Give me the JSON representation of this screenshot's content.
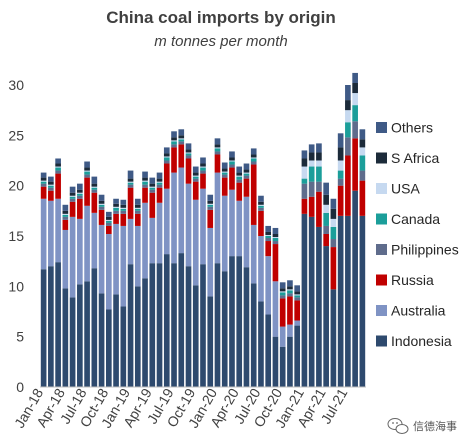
{
  "chart_data": {
    "type": "bar",
    "stacked": true,
    "title": "China coal imports by origin",
    "subtitle": "m tonnes per month",
    "xlabel": "",
    "ylabel": "",
    "ylim": [
      0,
      30
    ],
    "yticks": [
      0,
      5,
      10,
      15,
      20,
      25,
      30
    ],
    "grid": false,
    "legend_position": "right",
    "tick_labels": [
      {
        "label": "Jan-18",
        "index": 0
      },
      {
        "label": "Apr-18",
        "index": 3
      },
      {
        "label": "Jul-18",
        "index": 6
      },
      {
        "label": "Oct-18",
        "index": 9
      },
      {
        "label": "Jan-19",
        "index": 12
      },
      {
        "label": "Apr-19",
        "index": 15
      },
      {
        "label": "Jul-19",
        "index": 18
      },
      {
        "label": "Oct-19",
        "index": 21
      },
      {
        "label": "Jan-20",
        "index": 24
      },
      {
        "label": "Apr-20",
        "index": 27
      },
      {
        "label": "Jul-20",
        "index": 30
      },
      {
        "label": "Oct-20",
        "index": 33
      },
      {
        "label": "Jan-21",
        "index": 36
      },
      {
        "label": "Apr-21",
        "index": 39
      },
      {
        "label": "Jul-21",
        "index": 42
      }
    ],
    "categories": [
      "Jan-18",
      "Feb-18",
      "Mar-18",
      "Apr-18",
      "May-18",
      "Jun-18",
      "Jul-18",
      "Aug-18",
      "Sep-18",
      "Oct-18",
      "Nov-18",
      "Dec-18",
      "Jan-19",
      "Feb-19",
      "Mar-19",
      "Apr-19",
      "May-19",
      "Jun-19",
      "Jul-19",
      "Aug-19",
      "Sep-19",
      "Oct-19",
      "Nov-19",
      "Dec-19",
      "Jan-20",
      "Feb-20",
      "Mar-20",
      "Apr-20",
      "May-20",
      "Jun-20",
      "Jul-20",
      "Aug-20",
      "Sep-20",
      "Oct-20",
      "Nov-20",
      "Dec-20",
      "Jan-21",
      "Feb-21",
      "Mar-21",
      "Apr-21",
      "May-21",
      "Jun-21",
      "Jul-21",
      "Aug-21",
      "Sep-21"
    ],
    "series": [
      {
        "name": "Indonesia",
        "color": "#2e4a6e",
        "values": [
          11.7,
          12.0,
          12.4,
          9.8,
          8.9,
          10.2,
          10.5,
          11.8,
          9.3,
          7.7,
          9.2,
          8.0,
          12.2,
          10.0,
          10.8,
          12.3,
          12.3,
          13.2,
          12.3,
          13.3,
          12.0,
          10.1,
          12.2,
          9.0,
          12.3,
          11.5,
          13.0,
          13.0,
          11.9,
          10.3,
          8.5,
          7.2,
          5.0,
          4.0,
          5.0,
          6.1,
          17.2,
          16.9,
          15.9,
          14.0,
          9.7,
          17.0,
          17.0,
          19.5,
          17.0
        ]
      },
      {
        "name": "Australia",
        "color": "#7f93c4",
        "values": [
          7.0,
          6.5,
          6.3,
          5.8,
          8.0,
          6.5,
          7.5,
          5.5,
          6.8,
          7.5,
          7.0,
          8.0,
          4.5,
          6.0,
          7.5,
          4.5,
          6.0,
          6.5,
          9.0,
          8.5,
          8.2,
          8.5,
          7.5,
          6.8,
          9.0,
          7.5,
          6.6,
          5.5,
          7.0,
          5.8,
          6.5,
          5.8,
          5.5,
          2.0,
          1.2,
          0.5,
          0,
          0,
          0,
          0,
          0,
          0,
          0,
          0,
          0
        ]
      },
      {
        "name": "Russia",
        "color": "#c00000",
        "values": [
          1.2,
          1.0,
          2.5,
          1.0,
          1.5,
          2.0,
          2.8,
          2.0,
          1.5,
          0.8,
          1.0,
          1.2,
          3.1,
          1.2,
          1.5,
          2.5,
          1.5,
          2.5,
          2.5,
          2.3,
          2.5,
          1.8,
          1.5,
          1.8,
          1.8,
          1.8,
          2.2,
          1.8,
          1.8,
          6.0,
          2.5,
          1.5,
          3.7,
          2.8,
          2.8,
          2.0,
          1.5,
          2.0,
          3.5,
          1.2,
          4.2,
          3.0,
          6.0,
          5.2,
          3.5
        ]
      },
      {
        "name": "Philippines",
        "color": "#5f6c8c",
        "values": [
          0.3,
          0.3,
          0.3,
          0.3,
          0.3,
          0.3,
          0.3,
          0.3,
          0.3,
          0.3,
          0.3,
          0.3,
          0.3,
          0.3,
          0.3,
          0.3,
          0.3,
          0.3,
          0.3,
          0.3,
          0.3,
          0.3,
          0.3,
          0.3,
          0.3,
          0.3,
          0.3,
          0.3,
          0.3,
          0.3,
          0.3,
          0.3,
          0.3,
          0.3,
          0.3,
          0.3,
          1.5,
          1.5,
          1.0,
          0.8,
          0.8,
          0.7,
          1.8,
          1.7,
          1.0
        ]
      },
      {
        "name": "Canada",
        "color": "#1b9e9a",
        "values": [
          0.2,
          0.2,
          0.3,
          0.2,
          0.2,
          0.2,
          0.3,
          0.2,
          0.2,
          0.2,
          0.3,
          0.2,
          0.2,
          0.2,
          0.3,
          0.2,
          0.2,
          0.3,
          0.3,
          0.2,
          0.2,
          0.2,
          0.3,
          0.2,
          0.3,
          0.2,
          0.3,
          0.3,
          0.2,
          0.3,
          0.2,
          0.2,
          0.3,
          0.3,
          0.3,
          0.2,
          0.5,
          1.5,
          1.5,
          1.3,
          1.2,
          0.8,
          1.5,
          1.6,
          1.5
        ]
      },
      {
        "name": "USA",
        "color": "#c6d9f0",
        "values": [
          0.1,
          0.1,
          0.1,
          0.1,
          0.1,
          0.1,
          0.1,
          0.1,
          0.1,
          0.1,
          0.1,
          0.1,
          0.1,
          0.1,
          0.1,
          0.1,
          0.1,
          0.1,
          0.1,
          0.1,
          0.1,
          0.1,
          0.1,
          0.1,
          0.1,
          0.1,
          0.1,
          0.1,
          0.1,
          0.1,
          0.1,
          0.1,
          0.1,
          0.1,
          0.1,
          0.1,
          1.2,
          0.6,
          0.6,
          0.8,
          0.8,
          1.0,
          1.2,
          1.2,
          0.8
        ]
      },
      {
        "name": "S Africa",
        "color": "#1c2b3a",
        "values": [
          0.3,
          0.3,
          0.3,
          0.3,
          0.3,
          0.3,
          0.3,
          0.3,
          0.3,
          0.3,
          0.3,
          0.3,
          0.3,
          0.3,
          0.3,
          0.3,
          0.3,
          0.3,
          0.3,
          0.3,
          0.3,
          0.3,
          0.3,
          0.3,
          0.3,
          0.3,
          0.3,
          0.3,
          0.3,
          0.3,
          0.3,
          0.3,
          0.3,
          0.3,
          0.3,
          0.3,
          0.8,
          0.8,
          0.8,
          1.0,
          1.0,
          1.3,
          1.0,
          1.0,
          0.8
        ]
      },
      {
        "name": "Others",
        "color": "#3f5a86",
        "values": [
          0.5,
          0.5,
          0.5,
          0.6,
          0.6,
          0.6,
          0.6,
          0.7,
          0.6,
          0.5,
          0.5,
          0.5,
          0.8,
          0.6,
          0.6,
          0.6,
          0.6,
          0.6,
          0.6,
          0.6,
          0.6,
          0.6,
          0.6,
          0.6,
          0.6,
          0.6,
          0.6,
          0.6,
          0.6,
          0.6,
          0.6,
          0.6,
          0.6,
          0.6,
          0.6,
          0.6,
          0.8,
          0.8,
          0.9,
          1.2,
          1.0,
          1.4,
          1.5,
          1.0,
          1.0
        ]
      }
    ]
  },
  "watermark": {
    "icon": "wechat-bubble-icon",
    "text": "信德海事"
  }
}
